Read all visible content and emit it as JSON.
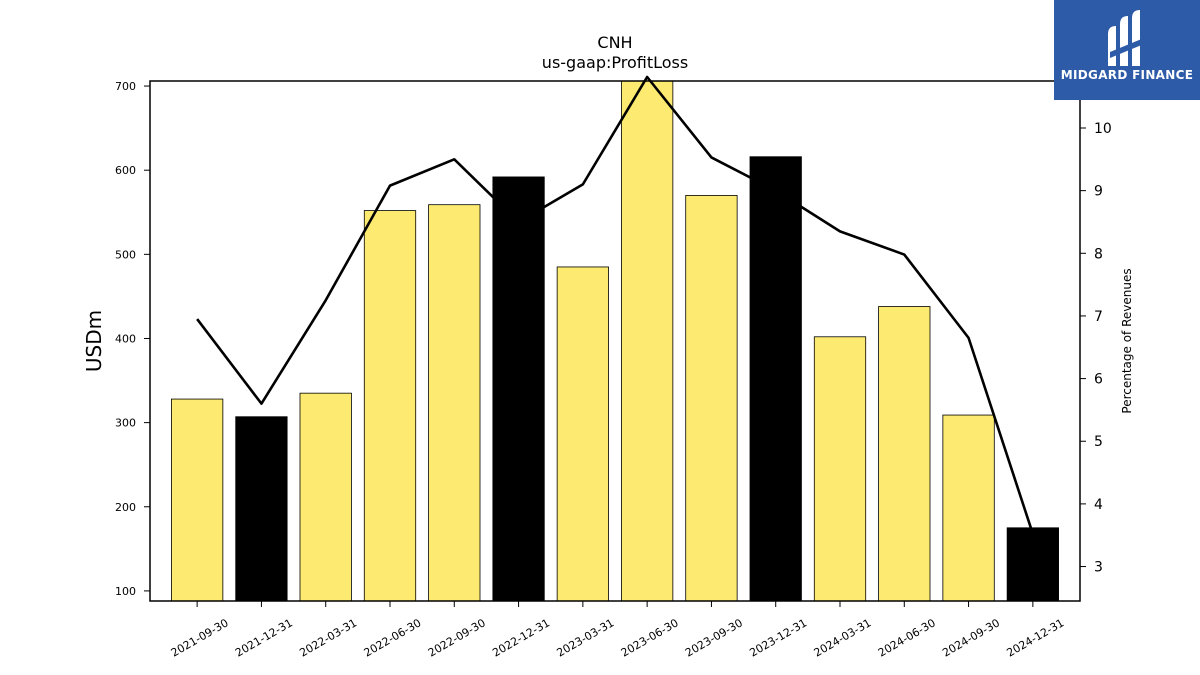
{
  "chart_data": {
    "type": "bar",
    "title": "CNH",
    "subtitle": "us-gaap:ProfitLoss",
    "ylabel": "USDm",
    "y2label": "Percentage of Revenues",
    "categories": [
      "2021-09-30",
      "2021-12-31",
      "2022-03-31",
      "2022-06-30",
      "2022-09-30",
      "2022-12-31",
      "2023-03-31",
      "2023-06-30",
      "2023-09-30",
      "2023-12-31",
      "2024-03-31",
      "2024-06-30",
      "2024-09-30",
      "2024-12-31"
    ],
    "series": [
      {
        "kind": "bar",
        "axis": "left",
        "values": [
          328,
          307,
          335,
          552,
          559,
          592,
          485,
          706,
          570,
          616,
          402,
          438,
          309,
          175
        ],
        "colors": [
          "#fdeb71",
          "#000000",
          "#fdeb71",
          "#fdeb71",
          "#fdeb71",
          "#000000",
          "#fdeb71",
          "#fdeb71",
          "#fdeb71",
          "#000000",
          "#fdeb71",
          "#fdeb71",
          "#fdeb71",
          "#000000"
        ]
      },
      {
        "kind": "line",
        "axis": "right",
        "values": [
          6.95,
          5.6,
          7.25,
          9.08,
          9.5,
          8.5,
          9.1,
          10.85,
          9.53,
          9.0,
          8.35,
          7.98,
          6.65,
          3.52
        ],
        "color": "#000000"
      }
    ],
    "ylim": [
      88,
      706
    ],
    "y2lim": [
      2.45,
      10.75
    ],
    "yticks": [
      100,
      200,
      300,
      400,
      500,
      600,
      700
    ],
    "y2ticks": [
      3,
      4,
      5,
      6,
      7,
      8,
      9,
      10
    ],
    "grid": false,
    "legend": "none"
  },
  "logo": {
    "text": "MIDGARD FINANCE",
    "color": "#2d5ba8"
  }
}
